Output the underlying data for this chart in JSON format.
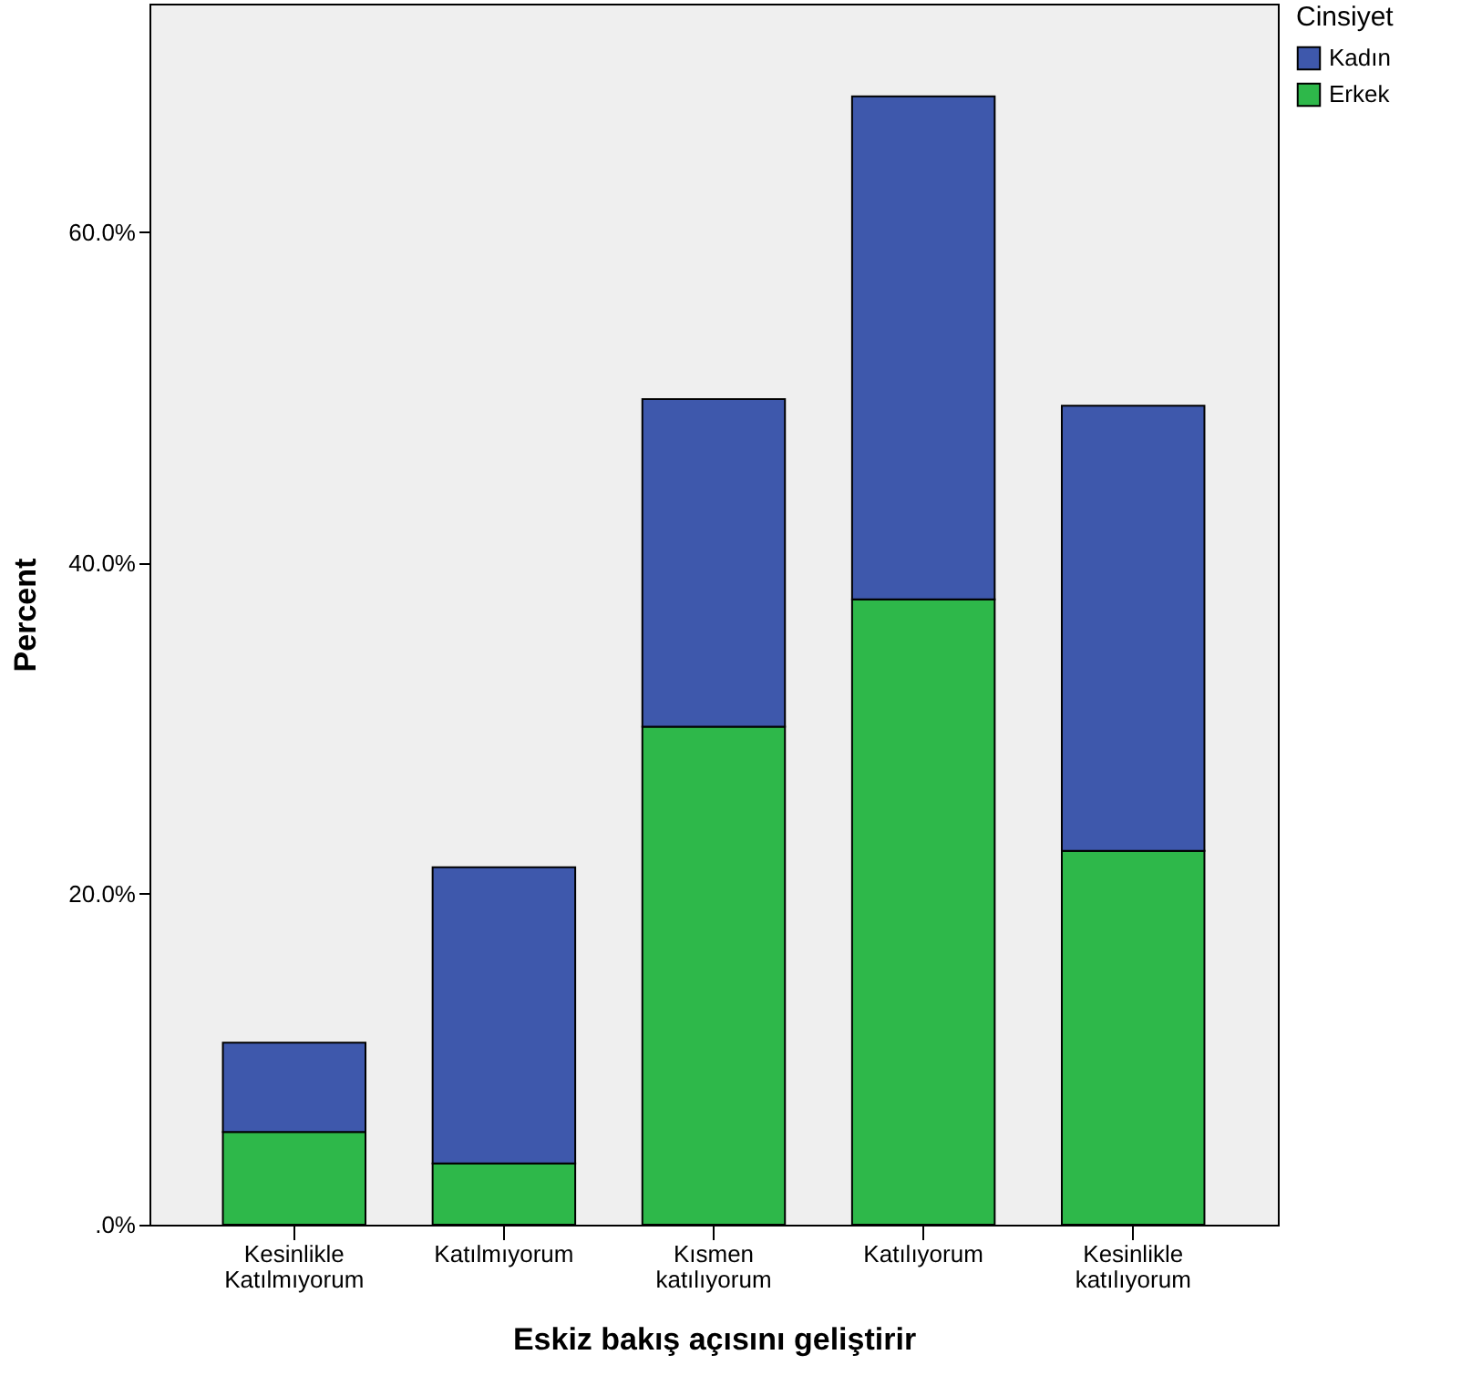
{
  "chart_data": {
    "type": "bar",
    "stacked": true,
    "xlabel": "Eskiz bakış açısını geliştirir",
    "ylabel": "Percent",
    "legend_title": "Cinsiyet",
    "categories": [
      "Kesinlikle Katılmıyorum",
      "Katılmıyorum",
      "Kısmen katılıyorum",
      "Katılıyorum",
      "Kesinlikle katılıyorum"
    ],
    "series": [
      {
        "name": "Erkek",
        "color": "#2eb84a",
        "values": [
          5.6,
          3.7,
          30.1,
          37.8,
          22.6
        ]
      },
      {
        "name": "Kadın",
        "color": "#3e58ac",
        "values": [
          5.4,
          17.9,
          19.8,
          30.4,
          26.9
        ]
      }
    ],
    "ylim": [
      0,
      73.8
    ],
    "yticks": [
      {
        "value": 0,
        "label": ".0%"
      },
      {
        "value": 20,
        "label": "20.0%"
      },
      {
        "value": 40,
        "label": "40.0%"
      },
      {
        "value": 60,
        "label": "60.0%"
      }
    ],
    "grid": false,
    "legend": "top right"
  }
}
